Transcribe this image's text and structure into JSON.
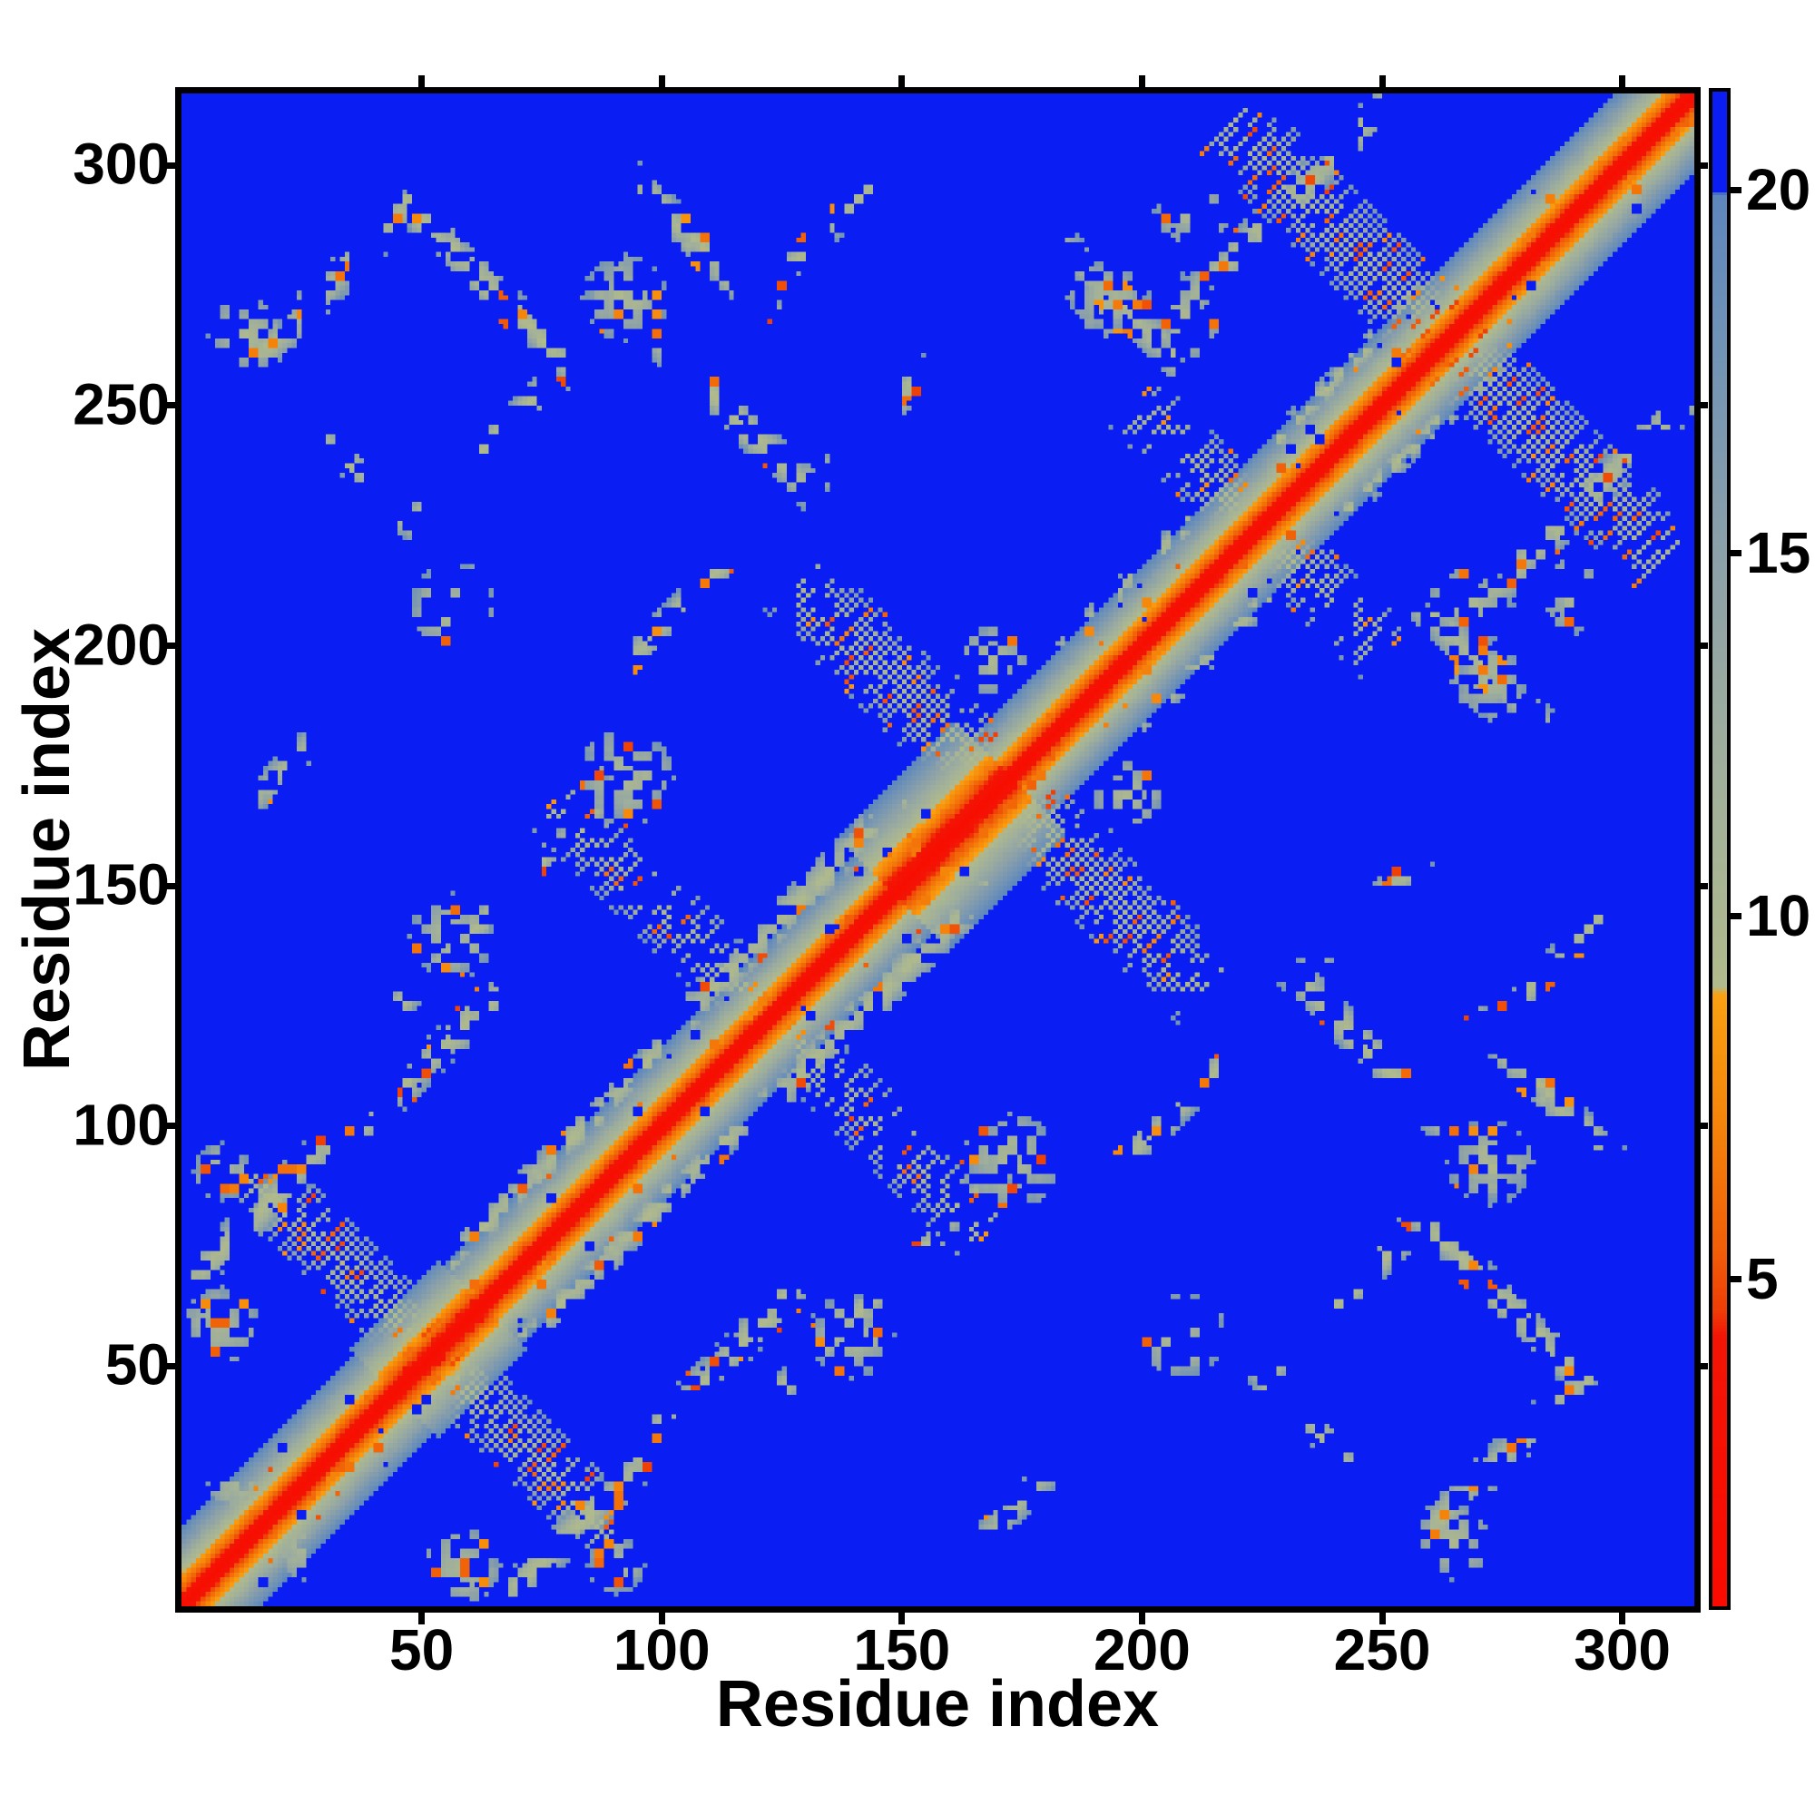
{
  "figure": {
    "kind": "residue distance map",
    "background": "#ffffff"
  },
  "axes": {
    "x_label": "Residue index",
    "y_label": "Residue index",
    "x_ticks": [
      50,
      100,
      150,
      200,
      250,
      300
    ],
    "y_ticks": [
      50,
      100,
      150,
      200,
      250,
      300
    ],
    "axis_min": 0,
    "axis_max": 315
  },
  "colorbar": {
    "ticks": [
      5,
      10,
      15,
      20
    ],
    "value_min": 0.49,
    "value_max": 21.35,
    "over_color": "#0a1df2"
  },
  "chart_data": {
    "type": "heatmap",
    "title": "",
    "xlabel": "Residue index",
    "ylabel": "Residue index",
    "n_residues": 315,
    "symmetric": true,
    "background_value": 21.35,
    "diagonal_min_value": 1.55,
    "colormap_stops": [
      [
        0.49,
        "#fb0a00"
      ],
      [
        4.2,
        "#f21505"
      ],
      [
        4.55,
        "#ef3d06"
      ],
      [
        5.4,
        "#f15e08"
      ],
      [
        7.2,
        "#f5850a"
      ],
      [
        8.9,
        "#faa011"
      ],
      [
        9.02,
        "#b0ba8c"
      ],
      [
        12.0,
        "#a0af9b"
      ],
      [
        15.0,
        "#8ba0a9"
      ],
      [
        18.0,
        "#6f92b6"
      ],
      [
        19.95,
        "#5d86bd"
      ],
      [
        20.0,
        "#0a1df2"
      ],
      [
        21.35,
        "#0a1df2"
      ]
    ],
    "backbone": {
      "base": 1.55,
      "slope": 1.12,
      "halo_halfwidth": 16,
      "bulges": [
        [
          44,
          62,
          1.15
        ],
        [
          148,
          172,
          1.42
        ]
      ]
    },
    "crossings": [
      {
        "c": 52,
        "L": 38,
        "w": 5,
        "q": 0.78
      },
      {
        "c": 122,
        "L": 46,
        "w": 5,
        "q": 0.5
      },
      {
        "c": 170,
        "L": 43,
        "w": 6,
        "q": 0.7
      },
      {
        "c": 224,
        "L": 27,
        "w": 5,
        "q": 0.58
      },
      {
        "c": 263,
        "L": 45,
        "w": 6,
        "q": 0.74
      }
    ],
    "far_antiparallel": [
      {
        "s": 338,
        "i1": 46,
        "i2": 80,
        "w": 5,
        "q": 0.68
      },
      {
        "s": 272,
        "i1": 27,
        "i2": 50,
        "w": 4,
        "q": 0.32
      },
      {
        "s": 390,
        "i1": 92,
        "i2": 124,
        "w": 5,
        "q": 0.55
      },
      {
        "s": 362,
        "i1": 96,
        "i2": 132,
        "w": 5,
        "q": 0.6
      },
      {
        "s": 466,
        "i1": 182,
        "i2": 206,
        "w": 5,
        "q": 0.55
      }
    ],
    "bands": [
      {
        "o": 66,
        "i1": 2,
        "i2": 30,
        "w": 5,
        "q": 0.7
      },
      {
        "o": 62,
        "i1": 34,
        "i2": 66,
        "w": 5,
        "q": 0.5
      },
      {
        "o": 80,
        "i1": 44,
        "i2": 90,
        "w": 4,
        "q": 0.42
      },
      {
        "o": 16,
        "i1": 54,
        "i2": 100,
        "w": 4,
        "q": 0.6
      },
      {
        "o": 18,
        "i1": 103,
        "i2": 150,
        "w": 5,
        "q": 0.65
      },
      {
        "o": 16,
        "i1": 182,
        "i2": 212,
        "w": 3,
        "q": 0.45
      },
      {
        "o": 15,
        "i1": 228,
        "i2": 258,
        "w": 3,
        "q": 0.5
      },
      {
        "o": 62,
        "i1": 210,
        "i2": 252,
        "w": 5,
        "q": 0.55
      },
      {
        "o": 244,
        "i1": 12,
        "i2": 46,
        "w": 5,
        "q": 0.65
      },
      {
        "o": 178,
        "i1": 46,
        "i2": 74,
        "w": 4,
        "q": 0.3
      },
      {
        "o": 104,
        "i1": 86,
        "i2": 120,
        "w": 4,
        "q": 0.3
      },
      {
        "o": 102,
        "i1": 128,
        "i2": 158,
        "w": 4,
        "q": 0.3
      },
      {
        "o": 153,
        "i1": 12,
        "i2": 26,
        "w": 4,
        "q": 0.55
      },
      {
        "o": 152,
        "i1": 124,
        "i2": 144,
        "w": 4,
        "q": 0.3
      }
    ],
    "blobs": [
      {
        "ci": 8,
        "cj": 58,
        "r": 8,
        "q": 0.55
      },
      {
        "ci": 8,
        "cj": 90,
        "r": 6,
        "q": 0.6
      },
      {
        "ci": 92,
        "cj": 272,
        "r": 9,
        "q": 0.55
      },
      {
        "ci": 13,
        "cj": 264,
        "r": 8,
        "q": 0.55
      },
      {
        "ci": 56,
        "cj": 208,
        "r": 9,
        "q": 0.25
      },
      {
        "ci": 92,
        "cj": 172,
        "r": 10,
        "q": 0.5
      },
      {
        "ci": 56,
        "cj": 139,
        "r": 9,
        "q": 0.45
      },
      {
        "ci": 192,
        "cj": 272,
        "r": 8,
        "q": 0.5
      },
      {
        "ci": 210,
        "cj": 290,
        "r": 8,
        "q": 0.28
      },
      {
        "ci": 208,
        "cj": 268,
        "r": 9,
        "q": 0.28
      },
      {
        "ci": 25,
        "cj": 12,
        "r": 7,
        "q": 0.5
      },
      {
        "ci": 168,
        "cj": 196,
        "r": 8,
        "q": 0.45
      }
    ],
    "noise": {
      "block": 2,
      "orange_speck": 0.12,
      "hole": 0.1,
      "halo_hole": 0.035,
      "halo_speck": 0.045,
      "seed": 7
    }
  }
}
